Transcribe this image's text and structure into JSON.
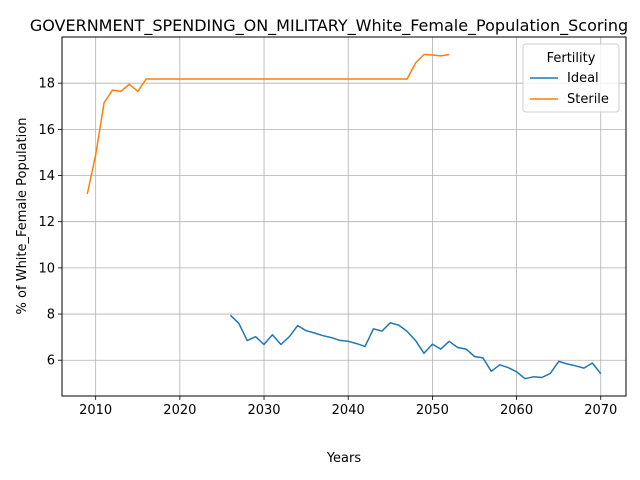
{
  "chart_data": {
    "type": "line",
    "title": "GOVERNMENT_SPENDING_ON_MILITARY_White_Female_Population_Scoring",
    "xlabel": "Years",
    "ylabel": "% of White_Female Population",
    "xlim": [
      2006,
      2073
    ],
    "ylim": [
      4.45,
      20.0
    ],
    "xticks": [
      2010,
      2020,
      2030,
      2040,
      2050,
      2060,
      2070
    ],
    "yticks": [
      6,
      8,
      10,
      12,
      14,
      16,
      18
    ],
    "grid": true,
    "legend": {
      "title": "Fertility",
      "placement": "top-right"
    },
    "series": [
      {
        "name": "Ideal",
        "color": "#1f77b4",
        "x": [
          2026,
          2027,
          2028,
          2029,
          2030,
          2031,
          2032,
          2033,
          2034,
          2035,
          2036,
          2037,
          2038,
          2039,
          2040,
          2041,
          2042,
          2043,
          2044,
          2045,
          2046,
          2047,
          2048,
          2049,
          2050,
          2051,
          2052,
          2053,
          2054,
          2055,
          2056,
          2057,
          2058,
          2059,
          2060,
          2061,
          2062,
          2063,
          2064,
          2065,
          2066,
          2067,
          2068,
          2069,
          2070
        ],
        "values": [
          7.95,
          7.6,
          6.85,
          7.02,
          6.68,
          7.1,
          6.68,
          7.02,
          7.5,
          7.28,
          7.18,
          7.06,
          6.98,
          6.86,
          6.82,
          6.72,
          6.6,
          7.36,
          7.26,
          7.62,
          7.52,
          7.25,
          6.85,
          6.3,
          6.7,
          6.48,
          6.82,
          6.55,
          6.48,
          6.16,
          6.1,
          5.52,
          5.8,
          5.68,
          5.5,
          5.2,
          5.28,
          5.25,
          5.42,
          5.95,
          5.84,
          5.76,
          5.66,
          5.88,
          5.42
        ]
      },
      {
        "name": "Sterile",
        "color": "#ff7f0e",
        "x": [
          2009,
          2010,
          2011,
          2012,
          2013,
          2014,
          2015,
          2016,
          2017,
          2018,
          2019,
          2020,
          2021,
          2022,
          2023,
          2024,
          2025,
          2026,
          2027,
          2028,
          2029,
          2030,
          2031,
          2032,
          2033,
          2034,
          2035,
          2036,
          2037,
          2038,
          2039,
          2040,
          2041,
          2042,
          2043,
          2044,
          2045,
          2046,
          2047,
          2048,
          2049,
          2050,
          2051,
          2052
        ],
        "values": [
          13.2,
          14.9,
          17.15,
          17.7,
          17.65,
          17.95,
          17.65,
          18.18,
          18.18,
          18.18,
          18.18,
          18.18,
          18.18,
          18.18,
          18.18,
          18.18,
          18.18,
          18.18,
          18.18,
          18.18,
          18.18,
          18.18,
          18.18,
          18.18,
          18.18,
          18.18,
          18.18,
          18.18,
          18.18,
          18.18,
          18.18,
          18.18,
          18.18,
          18.18,
          18.18,
          18.18,
          18.18,
          18.18,
          18.18,
          18.88,
          19.24,
          19.22,
          19.18,
          19.24
        ]
      }
    ]
  }
}
